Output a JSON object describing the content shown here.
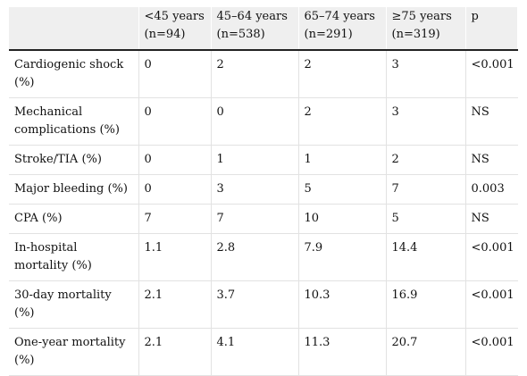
{
  "table": {
    "headers": [
      {
        "line1": "",
        "line2": ""
      },
      {
        "line1": "<45 years",
        "line2": "(n=94)"
      },
      {
        "line1": "45–64 years",
        "line2": "(n=538)"
      },
      {
        "line1": "65–74 years",
        "line2": "(n=291)"
      },
      {
        "line1": "≥75 years",
        "line2": "(n=319)"
      },
      {
        "line1": "p",
        "line2": ""
      }
    ],
    "rows": [
      {
        "label": "Cardiogenic shock (%)",
        "values": [
          "0",
          "2",
          "2",
          "3",
          "<0.001"
        ]
      },
      {
        "label": "Mechanical complications (%)",
        "values": [
          "0",
          "0",
          "2",
          "3",
          "NS"
        ]
      },
      {
        "label": "Stroke/TIA (%)",
        "values": [
          "0",
          "1",
          "1",
          "2",
          "NS"
        ]
      },
      {
        "label": "Major bleeding (%)",
        "values": [
          "0",
          "3",
          "5",
          "7",
          "0.003"
        ]
      },
      {
        "label": "CPA (%)",
        "values": [
          "7",
          "7",
          "10",
          "5",
          "NS"
        ]
      },
      {
        "label": "In-hospital mortality (%)",
        "values": [
          "1.1",
          "2.8",
          "7.9",
          "14.4",
          "<0.001"
        ]
      },
      {
        "label": "30-day mortality (%)",
        "values": [
          "2.1",
          "3.7",
          "10.3",
          "16.9",
          "<0.001"
        ]
      },
      {
        "label": "One-year mortality (%)",
        "values": [
          "2.1",
          "4.1",
          "11.3",
          "20.7",
          "<0.001"
        ]
      }
    ]
  }
}
